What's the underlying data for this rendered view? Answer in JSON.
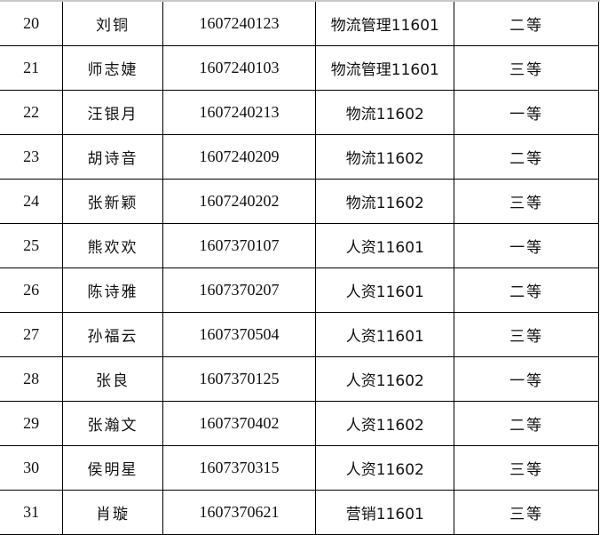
{
  "rows": [
    [
      "20",
      "刘铜",
      "1607240123",
      "物流管理11601",
      "二等"
    ],
    [
      "21",
      "师志婕",
      "1607240103",
      "物流管理11601",
      "三等"
    ],
    [
      "22",
      "汪银月",
      "1607240213",
      "物流11602",
      "一等"
    ],
    [
      "23",
      "胡诗音",
      "1607240209",
      "物流11602",
      "二等"
    ],
    [
      "24",
      "张新颖",
      "1607240202",
      "物流11602",
      "三等"
    ],
    [
      "25",
      "熊欢欢",
      "1607370107",
      "人资11601",
      "一等"
    ],
    [
      "26",
      "陈诗雅",
      "1607370207",
      "人资11601",
      "二等"
    ],
    [
      "27",
      "孙福云",
      "1607370504",
      "人资11601",
      "三等"
    ],
    [
      "28",
      "张良",
      "1607370125",
      "人资11602",
      "一等"
    ],
    [
      "29",
      "张瀚文",
      "1607370402",
      "人资11602",
      "二等"
    ],
    [
      "30",
      "侯明星",
      "1607370315",
      "人资11602",
      "三等"
    ],
    [
      "31",
      "肖璇",
      "1607370621",
      "营销11601",
      "三等"
    ]
  ]
}
